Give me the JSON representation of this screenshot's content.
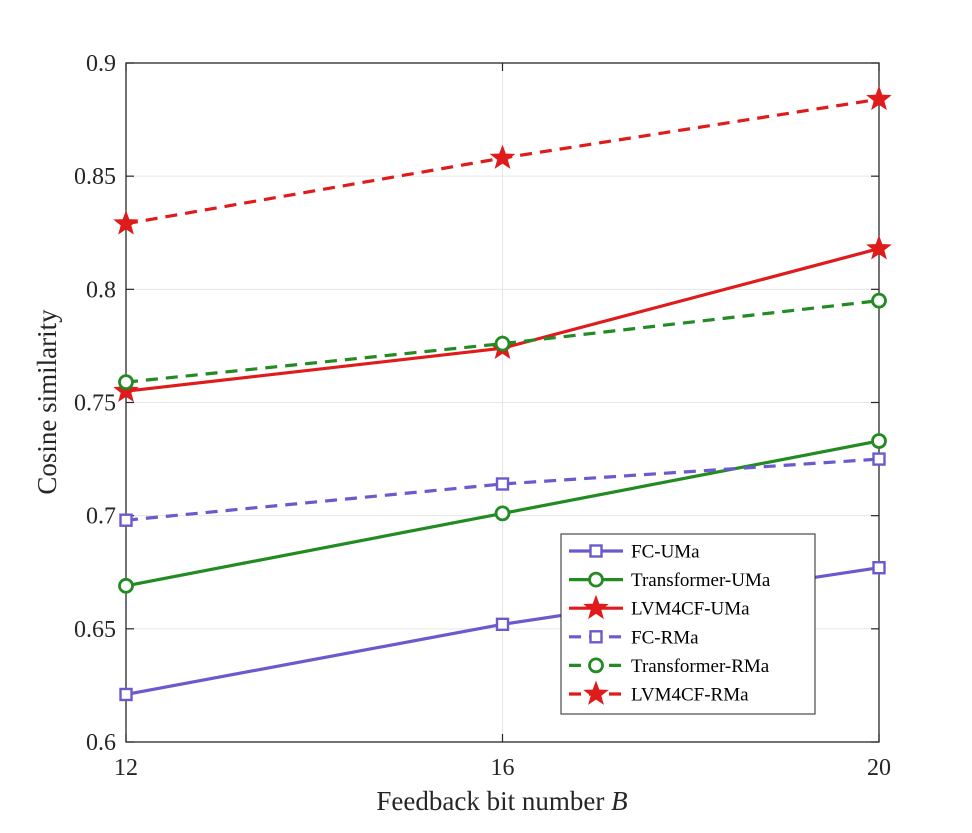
{
  "chart_data": {
    "type": "line",
    "title": "",
    "xlabel": "Feedback bit number",
    "xlabel_var": "B",
    "ylabel": "Cosine similarity",
    "xlim": [
      12,
      20
    ],
    "ylim": [
      0.6,
      0.9
    ],
    "x": [
      12,
      16,
      20
    ],
    "xticks": [
      12,
      16,
      20
    ],
    "xtick_labels": [
      "12",
      "16",
      "20"
    ],
    "yticks": [
      0.6,
      0.65,
      0.7,
      0.75,
      0.8,
      0.85,
      0.9
    ],
    "ytick_labels": [
      "0.6",
      "0.65",
      "0.7",
      "0.75",
      "0.8",
      "0.85",
      "0.9"
    ],
    "grid": true,
    "legend_position": "bottom-right",
    "series": [
      {
        "name": "FC-UMa",
        "values": [
          0.621,
          0.652,
          0.677
        ],
        "color": "#6a5acd",
        "dash": "solid",
        "marker": "square"
      },
      {
        "name": "Transformer-UMa",
        "values": [
          0.669,
          0.701,
          0.733
        ],
        "color": "#228b22",
        "dash": "solid",
        "marker": "circle"
      },
      {
        "name": "LVM4CF-UMa",
        "values": [
          0.755,
          0.774,
          0.818
        ],
        "color": "#e01b1b",
        "dash": "solid",
        "marker": "star"
      },
      {
        "name": "FC-RMa",
        "values": [
          0.698,
          0.714,
          0.725
        ],
        "color": "#6a5acd",
        "dash": "dashed",
        "marker": "square"
      },
      {
        "name": "Transformer-RMa",
        "values": [
          0.759,
          0.776,
          0.795
        ],
        "color": "#228b22",
        "dash": "dashed",
        "marker": "circle"
      },
      {
        "name": "LVM4CF-RMa",
        "values": [
          0.829,
          0.858,
          0.884
        ],
        "color": "#e01b1b",
        "dash": "dashed",
        "marker": "star"
      }
    ]
  }
}
